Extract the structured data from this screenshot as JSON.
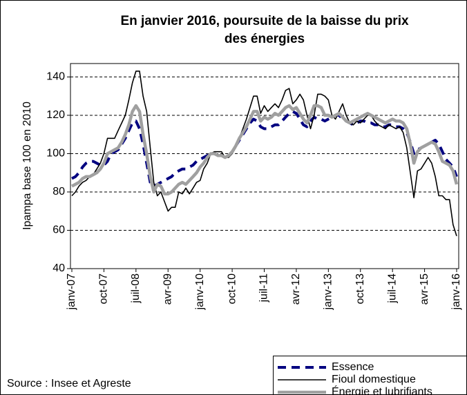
{
  "chart_data": {
    "type": "line",
    "title": [
      "En janvier 2016, poursuite de la baisse du prix",
      "des énergies"
    ],
    "y_label": "Ipampa base 100 en 2010",
    "source": "Source : Insee et Agreste",
    "categories": [
      "janv-07",
      null,
      null,
      null,
      null,
      null,
      null,
      null,
      null,
      "oct-07",
      null,
      null,
      null,
      null,
      null,
      null,
      null,
      null,
      "juil-08",
      null,
      null,
      null,
      null,
      null,
      null,
      null,
      null,
      "avr-09",
      null,
      null,
      null,
      null,
      null,
      null,
      null,
      null,
      "janv-10",
      null,
      null,
      null,
      null,
      null,
      null,
      null,
      null,
      "oct-10",
      null,
      null,
      null,
      null,
      null,
      null,
      null,
      null,
      "juil-11",
      null,
      null,
      null,
      null,
      null,
      null,
      null,
      null,
      "avr-12",
      null,
      null,
      null,
      null,
      null,
      null,
      null,
      null,
      "janv-13",
      null,
      null,
      null,
      null,
      null,
      null,
      null,
      null,
      "oct-13",
      null,
      null,
      null,
      null,
      null,
      null,
      null,
      null,
      "juil-14",
      null,
      null,
      null,
      null,
      null,
      null,
      null,
      null,
      "avr-15",
      null,
      null,
      null,
      null,
      null,
      null,
      null,
      null,
      "janv-16"
    ],
    "ylim": [
      40,
      147
    ],
    "yticks": [
      40,
      60,
      80,
      100,
      120,
      140
    ],
    "grid": true,
    "legend": "bottom-right",
    "series": [
      {
        "name": "Essence",
        "color": "#000080",
        "style": "dashed",
        "values": [
          87,
          88,
          90,
          93,
          95,
          96,
          96,
          95,
          94,
          94,
          96,
          100,
          101,
          102,
          105,
          108,
          112,
          116,
          117,
          113,
          105,
          95,
          85,
          83,
          84,
          85,
          86,
          87,
          88,
          90,
          91,
          92,
          92,
          93,
          94,
          96,
          97,
          98,
          99,
          100,
          100,
          99,
          99,
          98,
          99,
          101,
          104,
          107,
          110,
          113,
          116,
          118,
          117,
          114,
          113,
          113,
          114,
          115,
          115,
          117,
          119,
          121,
          122,
          121,
          118,
          115,
          114,
          117,
          119,
          118,
          118,
          117,
          118,
          119,
          120,
          120,
          118,
          117,
          116,
          115,
          116,
          117,
          117,
          116,
          116,
          115,
          115,
          114,
          114,
          115,
          115,
          114,
          114,
          113,
          111,
          106,
          100,
          102,
          103,
          104,
          105,
          106,
          107,
          105,
          101,
          97,
          95,
          93,
          88
        ]
      },
      {
        "name": "Fioul domestique",
        "color": "#000000",
        "style": "thin",
        "values": [
          78,
          80,
          83,
          85,
          86,
          88,
          89,
          92,
          95,
          100,
          108,
          108,
          108,
          112,
          116,
          120,
          128,
          137,
          143,
          143,
          130,
          122,
          103,
          85,
          78,
          80,
          75,
          70,
          72,
          72,
          80,
          79,
          82,
          79,
          82,
          85,
          86,
          92,
          95,
          100,
          101,
          101,
          101,
          98,
          98,
          100,
          103,
          108,
          113,
          118,
          124,
          130,
          130,
          121,
          125,
          122,
          124,
          126,
          124,
          128,
          133,
          134,
          126,
          128,
          131,
          128,
          120,
          113,
          120,
          131,
          131,
          130,
          128,
          120,
          118,
          122,
          126,
          120,
          116,
          115,
          117,
          116,
          118,
          120,
          120,
          117,
          115,
          114,
          113,
          115,
          114,
          113,
          114,
          111,
          103,
          90,
          77,
          91,
          92,
          95,
          98,
          95,
          88,
          78,
          78,
          76,
          76,
          63,
          57
        ]
      },
      {
        "name": "Énergie et lubrifiants",
        "color": "#a0a0a0",
        "style": "thick",
        "values": [
          83,
          84,
          85,
          87,
          88,
          88,
          89,
          90,
          92,
          95,
          100,
          101,
          102,
          103,
          106,
          110,
          115,
          122,
          125,
          122,
          110,
          100,
          88,
          80,
          84,
          83,
          79,
          79,
          80,
          82,
          84,
          85,
          84,
          86,
          88,
          90,
          93,
          95,
          98,
          100,
          100,
          99,
          99,
          98,
          99,
          101,
          104,
          108,
          111,
          114,
          118,
          122,
          122,
          117,
          119,
          118,
          119,
          121,
          120,
          122,
          124,
          125,
          123,
          124,
          121,
          118,
          116,
          120,
          125,
          125,
          124,
          120,
          120,
          119,
          120,
          121,
          119,
          117,
          116,
          117,
          118,
          119,
          120,
          121,
          120,
          119,
          118,
          117,
          116,
          117,
          118,
          117,
          117,
          116,
          113,
          105,
          95,
          101,
          103,
          104,
          105,
          106,
          105,
          101,
          96,
          95,
          94,
          91,
          84
        ]
      }
    ]
  }
}
